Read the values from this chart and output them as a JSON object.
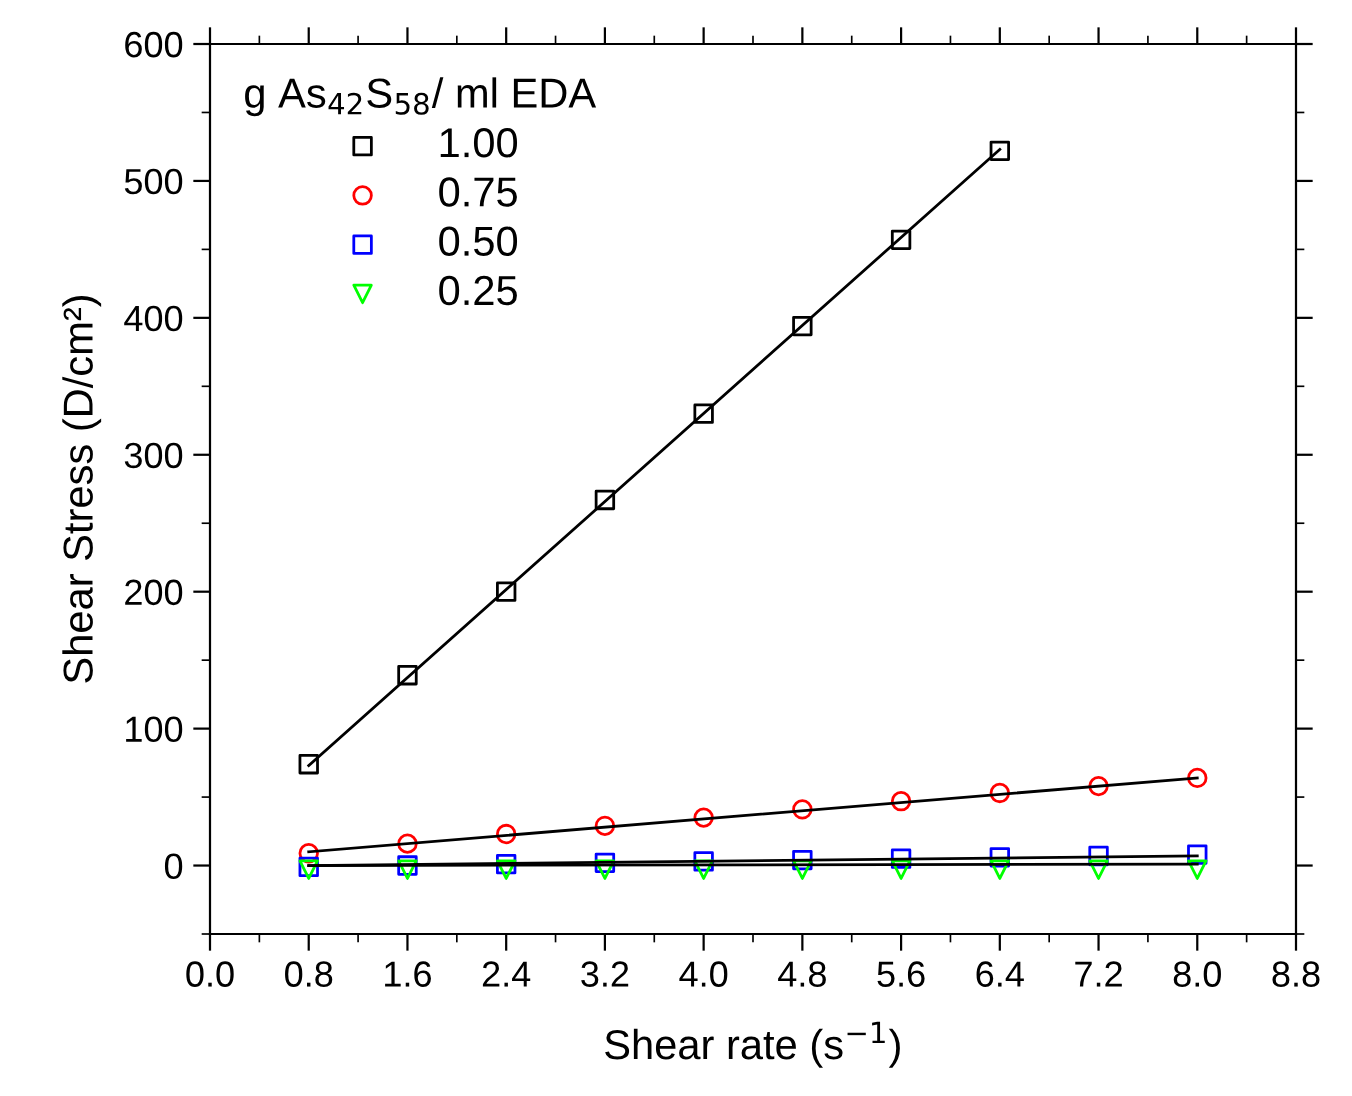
{
  "chart_data": {
    "type": "scatter",
    "xlabel": "Shear rate (s$^{−1}$)",
    "ylabel": "Shear Stress (D/cm²)",
    "legend_title": "g As$_{42}$S$_{58}$/ ml EDA",
    "legend": "top left",
    "grid": false,
    "xlim": [
      0,
      8.8
    ],
    "xticks": [
      {
        "value": 0,
        "label": "0.0"
      },
      0.8,
      1.6,
      2.4,
      3.2,
      {
        "value": 4,
        "label": "4.0"
      },
      4.8,
      5.6,
      6.4,
      7.2,
      {
        "value": 8,
        "label": "8.0"
      },
      8.8
    ],
    "ylim": [
      -50,
      600
    ],
    "yticks": [
      0,
      100,
      200,
      300,
      400,
      500,
      600
    ],
    "series": [
      {
        "name": "1.00",
        "marker": "square",
        "color": "#000000",
        "x": [
          0.8,
          1.6,
          2.4,
          3.2,
          4.0,
          4.8,
          5.6,
          6.4
        ],
        "values": [
          74,
          139,
          200,
          267,
          330,
          394,
          457,
          522
        ]
      },
      {
        "name": "0.75",
        "marker": "circle",
        "color": "#ff0000",
        "x": [
          0.8,
          1.6,
          2.4,
          3.2,
          4.0,
          4.8,
          5.6,
          6.4,
          7.2,
          8.0
        ],
        "values": [
          9,
          16,
          23,
          29,
          35,
          41,
          47,
          53,
          58,
          64
        ]
      },
      {
        "name": "0.50",
        "marker": "square",
        "color": "#0000ff",
        "x": [
          0.8,
          1.6,
          2.4,
          3.2,
          4.0,
          4.8,
          5.6,
          6.4,
          7.2,
          8.0
        ],
        "values": [
          -1,
          0,
          1,
          2,
          3,
          4,
          5,
          6,
          7,
          8
        ]
      },
      {
        "name": "0.25",
        "marker": "triangle",
        "color": "#00ff00",
        "x": [
          0.8,
          1.6,
          2.4,
          3.2,
          4.0,
          4.8,
          5.6,
          6.4,
          7.2,
          8.0
        ],
        "values": [
          -3,
          -3,
          -3,
          -3,
          -3,
          -3,
          -3,
          -3,
          -3,
          -3
        ]
      },
      {
        "type": "line",
        "color": "#000000",
        "x": [
          0.8,
          6.4
        ],
        "values": [
          73,
          523
        ]
      },
      {
        "type": "line",
        "color": "#000000",
        "x": [
          0.8,
          8.0
        ],
        "values": [
          10,
          64
        ]
      },
      {
        "type": "line",
        "color": "#000000",
        "x": [
          0.8,
          8.0
        ],
        "values": [
          0,
          7
        ]
      },
      {
        "type": "line",
        "color": "#000000",
        "x": [
          0.8,
          8.0
        ],
        "values": [
          0,
          1
        ]
      }
    ]
  }
}
